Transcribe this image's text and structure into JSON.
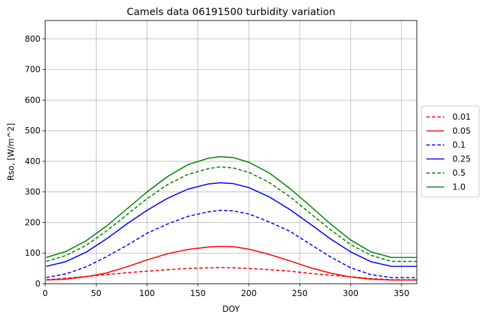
{
  "chart_data": {
    "type": "line",
    "title": "Camels data 06191500 turbidity variation",
    "xlabel": "DOY",
    "ylabel": "Rso, [W/m^2]",
    "xlim": [
      0,
      365
    ],
    "ylim": [
      0,
      860
    ],
    "xticks": [
      0,
      50,
      100,
      150,
      200,
      250,
      300,
      350
    ],
    "yticks": [
      0,
      100,
      200,
      300,
      400,
      500,
      600,
      700,
      800
    ],
    "grid": true,
    "legend_position": "right",
    "x": [
      1,
      20,
      40,
      60,
      80,
      100,
      120,
      140,
      160,
      172,
      185,
      200,
      220,
      240,
      260,
      280,
      300,
      320,
      340,
      365
    ],
    "series": [
      {
        "name": "0.01",
        "color": "#ff0000",
        "dash": true,
        "values": [
          13,
          18,
          24,
          30,
          36,
          41,
          46,
          50,
          52,
          53,
          52,
          50,
          46,
          41,
          34,
          28,
          23,
          17,
          13,
          13
        ]
      },
      {
        "name": "0.05",
        "color": "#ff0000",
        "dash": false,
        "values": [
          12,
          15,
          23,
          35,
          55,
          78,
          98,
          112,
          120,
          122,
          121,
          113,
          96,
          75,
          53,
          35,
          22,
          15,
          12,
          12
        ]
      },
      {
        "name": "0.1",
        "color": "#0000ff",
        "dash": true,
        "values": [
          20,
          32,
          55,
          88,
          125,
          165,
          195,
          220,
          235,
          240,
          238,
          228,
          202,
          172,
          130,
          88,
          52,
          30,
          20,
          20
        ]
      },
      {
        "name": "0.25",
        "color": "#0000ff",
        "dash": false,
        "values": [
          57,
          72,
          103,
          146,
          195,
          240,
          279,
          309,
          326,
          330,
          327,
          314,
          284,
          243,
          196,
          147,
          104,
          72,
          57,
          57
        ]
      },
      {
        "name": "0.5",
        "color": "#008000",
        "dash": true,
        "values": [
          73,
          92,
          125,
          172,
          225,
          278,
          324,
          357,
          376,
          382,
          378,
          364,
          331,
          285,
          231,
          177,
          128,
          93,
          73,
          73
        ]
      },
      {
        "name": "1.0",
        "color": "#008000",
        "dash": false,
        "values": [
          86,
          105,
          140,
          188,
          244,
          300,
          350,
          389,
          410,
          415,
          412,
          397,
          362,
          312,
          255,
          196,
          143,
          104,
          86,
          86
        ]
      }
    ]
  }
}
